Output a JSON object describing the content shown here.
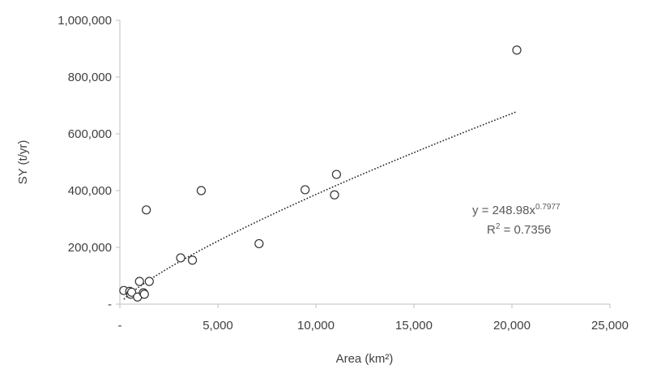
{
  "chart_data": {
    "type": "scatter",
    "xlabel": "Area (km²)",
    "ylabel": "SY (t/yr)",
    "xlim": [
      0,
      25000
    ],
    "ylim": [
      0,
      1000000
    ],
    "x_ticks": [
      {
        "value": 0,
        "label": "-"
      },
      {
        "value": 5000,
        "label": "5,000"
      },
      {
        "value": 10000,
        "label": "10,000"
      },
      {
        "value": 15000,
        "label": "15,000"
      },
      {
        "value": 20000,
        "label": "20,000"
      },
      {
        "value": 25000,
        "label": "25,000"
      }
    ],
    "y_ticks": [
      {
        "value": 0,
        "label": "-"
      },
      {
        "value": 200000,
        "label": "200,000"
      },
      {
        "value": 400000,
        "label": "400,000"
      },
      {
        "value": 600000,
        "label": "600,000"
      },
      {
        "value": 800000,
        "label": "800,000"
      },
      {
        "value": 1000000,
        "label": "1,000,000"
      }
    ],
    "grid": false,
    "points": [
      {
        "x": 200,
        "y": 48000
      },
      {
        "x": 500,
        "y": 45000
      },
      {
        "x": 550,
        "y": 35000
      },
      {
        "x": 600,
        "y": 42000
      },
      {
        "x": 900,
        "y": 25000
      },
      {
        "x": 1000,
        "y": 80000
      },
      {
        "x": 1200,
        "y": 40000
      },
      {
        "x": 1250,
        "y": 35000
      },
      {
        "x": 1350,
        "y": 332000
      },
      {
        "x": 1500,
        "y": 80000
      },
      {
        "x": 3100,
        "y": 163000
      },
      {
        "x": 3700,
        "y": 155000
      },
      {
        "x": 4150,
        "y": 400000
      },
      {
        "x": 7100,
        "y": 213000
      },
      {
        "x": 9450,
        "y": 403000
      },
      {
        "x": 10950,
        "y": 385000
      },
      {
        "x": 11050,
        "y": 457000
      },
      {
        "x": 20250,
        "y": 895000
      }
    ],
    "trendline": {
      "type": "power",
      "coefficient": 248.98,
      "exponent": 0.7977,
      "x_range": [
        200,
        20250
      ],
      "equation_base": "y = 248.98x",
      "equation_exponent": "0.7977",
      "r2_base": "R",
      "r2_exponent": "2",
      "r2_rest": " = 0.7356"
    }
  }
}
